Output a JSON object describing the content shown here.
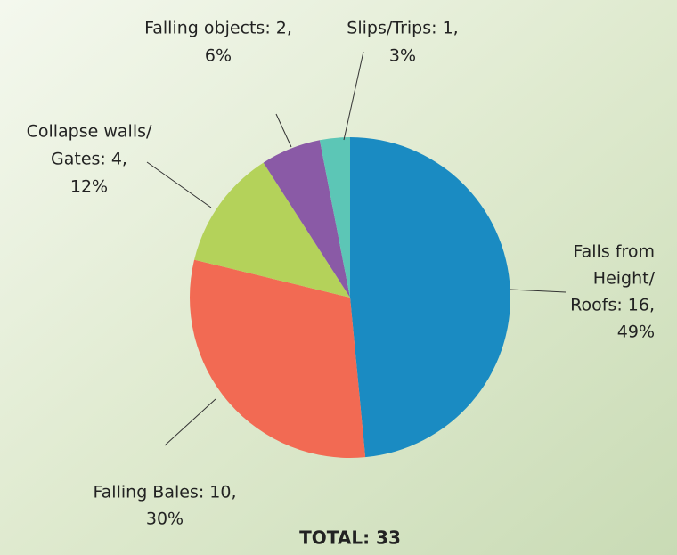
{
  "chart_data": {
    "type": "pie",
    "values": [
      16,
      10,
      4,
      2,
      1
    ],
    "value_labels": [
      [
        "Falls from",
        "Height/",
        "Roofs: 16,",
        "49%"
      ],
      [
        "Falling Bales: 10,",
        "30%"
      ],
      [
        "Collapse walls/",
        "Gates: 4,",
        "12%"
      ],
      [
        "Falling objects: 2,",
        "6%"
      ],
      [
        "Slips/Trips: 1,",
        "3%"
      ]
    ],
    "colors": [
      "#1a8bc2",
      "#f26a53",
      "#b4d25a",
      "#8a5aa6",
      "#5cc6b6"
    ],
    "total_label": "TOTAL: 33"
  }
}
